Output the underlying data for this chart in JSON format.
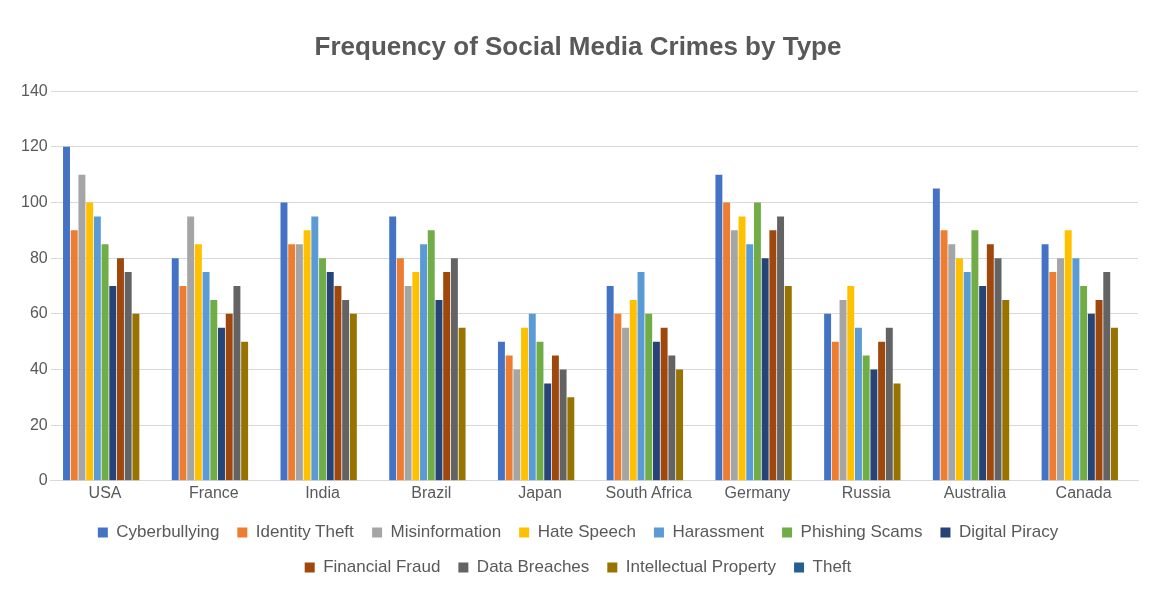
{
  "chart_data": {
    "type": "bar",
    "title": "Frequency of Social Media Crimes by Type",
    "categories": [
      "USA",
      "France",
      "India",
      "Brazil",
      "Japan",
      "South Africa",
      "Germany",
      "Russia",
      "Australia",
      "Canada"
    ],
    "series": [
      {
        "name": "Cyberbullying",
        "color": "#4472c4",
        "values": [
          120,
          80,
          100,
          95,
          50,
          70,
          110,
          60,
          105,
          85
        ]
      },
      {
        "name": "Identity Theft",
        "color": "#ed7d31",
        "values": [
          90,
          70,
          85,
          80,
          45,
          60,
          100,
          50,
          90,
          75
        ]
      },
      {
        "name": "Misinformation",
        "color": "#a5a5a5",
        "values": [
          110,
          95,
          85,
          70,
          40,
          55,
          90,
          65,
          85,
          80
        ]
      },
      {
        "name": "Hate Speech",
        "color": "#ffc000",
        "values": [
          100,
          85,
          90,
          75,
          55,
          65,
          95,
          70,
          80,
          90
        ]
      },
      {
        "name": "Harassment",
        "color": "#5b9bd5",
        "values": [
          95,
          75,
          95,
          85,
          60,
          75,
          85,
          55,
          75,
          80
        ]
      },
      {
        "name": "Phishing Scams",
        "color": "#70ad47",
        "values": [
          85,
          65,
          80,
          90,
          50,
          60,
          100,
          45,
          90,
          70
        ]
      },
      {
        "name": "Digital Piracy",
        "color": "#264478",
        "values": [
          70,
          55,
          75,
          65,
          35,
          50,
          80,
          40,
          70,
          60
        ]
      },
      {
        "name": "Financial Fraud",
        "color": "#9e480e",
        "values": [
          80,
          60,
          70,
          75,
          45,
          55,
          90,
          50,
          85,
          65
        ]
      },
      {
        "name": "Data Breaches",
        "color": "#636363",
        "values": [
          75,
          70,
          65,
          80,
          40,
          45,
          95,
          55,
          80,
          75
        ]
      },
      {
        "name": "Intellectual Property",
        "color": "#997300",
        "values": [
          60,
          50,
          60,
          55,
          30,
          40,
          70,
          35,
          65,
          55
        ]
      },
      {
        "name": "Theft",
        "color": "#255e91",
        "values": [
          null,
          null,
          null,
          null,
          null,
          null,
          null,
          null,
          null,
          null
        ]
      }
    ],
    "ylim": [
      0,
      140
    ],
    "yticks": [
      0,
      20,
      40,
      60,
      80,
      100,
      120,
      140
    ],
    "grid": "y",
    "legend": "bottom"
  }
}
